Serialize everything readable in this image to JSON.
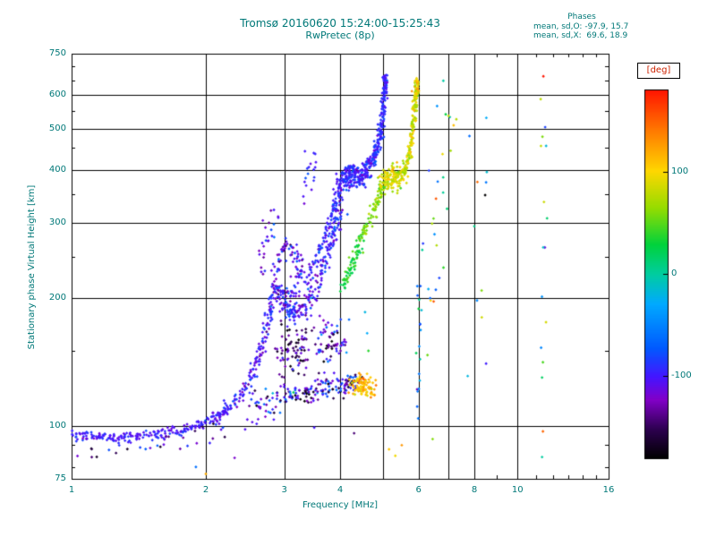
{
  "colors": {
    "text": "#007878",
    "axis": "#000000",
    "deg_label": "#cc2200",
    "background": "#ffffff"
  },
  "chart_data": {
    "type": "scatter",
    "title": "Tromsø 20160620 15:24:00-15:25:43",
    "subtitle": "RwPretec (8p)",
    "xlabel": "Frequency [MHz]",
    "ylabel": "Stationary phase Virtual Height [km]",
    "annotations": [
      "Phases",
      "mean, sd,O: -97.9, 15.7",
      "mean, sd,X:  69.6, 18.9"
    ],
    "x_scale": "log",
    "x_range": [
      1,
      16
    ],
    "x_ticks": [
      1,
      2,
      3,
      4,
      6,
      8,
      10,
      16
    ],
    "x_minor_ticks": [
      5,
      7,
      9,
      11,
      12,
      13,
      14,
      15
    ],
    "y_scale": "log",
    "y_range": [
      75,
      750
    ],
    "y_ticks": [
      750,
      600,
      500,
      400,
      300,
      200,
      100,
      75
    ],
    "y_minor_ticks": [
      80,
      90,
      150,
      250,
      350,
      450,
      550,
      650,
      700
    ],
    "grid_x": [
      2,
      3,
      4,
      5,
      6,
      7,
      8,
      10
    ],
    "grid_y": [
      100,
      200,
      300,
      400,
      500,
      600
    ],
    "colorbar": {
      "label": "[deg]",
      "ticks": [
        100,
        0,
        -100
      ],
      "vmin": -180,
      "vmax": 180
    },
    "colormap_stops": [
      [
        0.0,
        0,
        0,
        0
      ],
      [
        0.08,
        45,
        0,
        80
      ],
      [
        0.16,
        130,
        0,
        200
      ],
      [
        0.22,
        70,
        20,
        255
      ],
      [
        0.3,
        0,
        90,
        255
      ],
      [
        0.42,
        0,
        170,
        255
      ],
      [
        0.5,
        0,
        205,
        160
      ],
      [
        0.58,
        0,
        210,
        60
      ],
      [
        0.68,
        150,
        220,
        0
      ],
      [
        0.78,
        255,
        215,
        0
      ],
      [
        0.88,
        255,
        130,
        0
      ],
      [
        1.0,
        255,
        20,
        0
      ]
    ],
    "traces": [
      {
        "name": "o-trace-base",
        "phase": -100,
        "phase_sd": 10,
        "n": 240,
        "jf": 0.012,
        "jh": 0.015,
        "path": [
          [
            1.0,
            96
          ],
          [
            1.12,
            94
          ],
          [
            1.25,
            93
          ],
          [
            1.4,
            94
          ],
          [
            1.6,
            96
          ],
          [
            1.8,
            98
          ],
          [
            2.0,
            102
          ],
          [
            2.15,
            106
          ],
          [
            2.3,
            112
          ]
        ]
      },
      {
        "name": "base-under-scatter",
        "phase": -125,
        "phase_sd": 30,
        "n": 28,
        "jf": 0.05,
        "jh": 0.03,
        "path": [
          [
            1.03,
            88
          ],
          [
            1.3,
            87
          ],
          [
            1.6,
            90
          ],
          [
            1.95,
            94
          ],
          [
            2.2,
            100
          ]
        ]
      },
      {
        "name": "o-trace-knee",
        "phase": -100,
        "phase_sd": 14,
        "n": 130,
        "jf": 0.01,
        "jh": 0.02,
        "path": [
          [
            2.3,
            112
          ],
          [
            2.45,
            122
          ],
          [
            2.55,
            132
          ],
          [
            2.62,
            145
          ],
          [
            2.7,
            160
          ],
          [
            2.76,
            178
          ],
          [
            2.81,
            196
          ],
          [
            2.86,
            212
          ]
        ]
      },
      {
        "name": "knee-top-scatter",
        "phase": -100,
        "phase_sd": 20,
        "n": 26,
        "jf": 0.02,
        "jh": 0.05,
        "path": [
          [
            2.66,
            235
          ],
          [
            2.72,
            260
          ],
          [
            2.78,
            285
          ],
          [
            2.84,
            305
          ]
        ]
      },
      {
        "name": "loop-upper",
        "phase": -102,
        "phase_sd": 20,
        "n": 95,
        "jf": 0.012,
        "jh": 0.025,
        "path": [
          [
            2.82,
            218
          ],
          [
            2.9,
            242
          ],
          [
            3.0,
            260
          ],
          [
            3.1,
            263
          ],
          [
            3.2,
            252
          ],
          [
            3.26,
            234
          ],
          [
            3.2,
            216
          ],
          [
            3.1,
            204
          ],
          [
            3.02,
            196
          ]
        ]
      },
      {
        "name": "mid-rise",
        "phase": -96,
        "phase_sd": 16,
        "n": 210,
        "jf": 0.012,
        "jh": 0.03,
        "path": [
          [
            2.88,
            210
          ],
          [
            2.98,
            198
          ],
          [
            3.08,
            188
          ],
          [
            3.18,
            183
          ],
          [
            3.32,
            190
          ],
          [
            3.46,
            206
          ],
          [
            3.6,
            226
          ],
          [
            3.74,
            250
          ],
          [
            3.86,
            276
          ],
          [
            3.96,
            302
          ],
          [
            4.02,
            322
          ]
        ]
      },
      {
        "name": "second-branch",
        "phase": -94,
        "phase_sd": 12,
        "n": 115,
        "jf": 0.01,
        "jh": 0.025,
        "path": [
          [
            3.32,
            214
          ],
          [
            3.5,
            244
          ],
          [
            3.66,
            270
          ],
          [
            3.8,
            300
          ],
          [
            3.9,
            330
          ],
          [
            3.96,
            356
          ],
          [
            4.02,
            378
          ]
        ]
      },
      {
        "name": "purple-cluster",
        "phase": -138,
        "phase_sd": 25,
        "n": 85,
        "jf": 0.035,
        "jh": 0.08,
        "path": [
          [
            2.95,
            150
          ],
          [
            3.1,
            152
          ],
          [
            3.25,
            150
          ],
          [
            3.35,
            148
          ]
        ]
      },
      {
        "name": "tangle-mid",
        "phase": -112,
        "phase_sd": 35,
        "n": 65,
        "jf": 0.025,
        "jh": 0.06,
        "path": [
          [
            3.6,
            150
          ],
          [
            3.75,
            158
          ],
          [
            3.9,
            162
          ],
          [
            4.0,
            156
          ]
        ]
      },
      {
        "name": "upper-scatter",
        "phase": -95,
        "phase_sd": 12,
        "n": 18,
        "jf": 0.02,
        "jh": 0.06,
        "path": [
          [
            3.35,
            360
          ],
          [
            3.45,
            392
          ],
          [
            3.55,
            415
          ]
        ]
      },
      {
        "name": "o-cusp-blob",
        "phase": -96,
        "phase_sd": 12,
        "n": 170,
        "jf": 0.022,
        "jh": 0.03,
        "path": [
          [
            4.05,
            368
          ],
          [
            4.15,
            386
          ],
          [
            4.25,
            396
          ],
          [
            4.35,
            390
          ],
          [
            4.45,
            380
          ],
          [
            4.55,
            394
          ]
        ]
      },
      {
        "name": "o-steep",
        "phase": -95,
        "phase_sd": 11,
        "n": 210,
        "jf": 0.007,
        "jh": 0.02,
        "path": [
          [
            4.55,
            398
          ],
          [
            4.66,
            414
          ],
          [
            4.76,
            426
          ],
          [
            4.83,
            442
          ],
          [
            4.89,
            464
          ],
          [
            4.93,
            492
          ],
          [
            4.97,
            528
          ],
          [
            5.0,
            566
          ],
          [
            5.03,
            606
          ],
          [
            5.05,
            642
          ],
          [
            5.02,
            658
          ]
        ]
      },
      {
        "name": "x-lower-a",
        "phase": 32,
        "phase_sd": 12,
        "n": 70,
        "jf": 0.01,
        "jh": 0.02,
        "path": [
          [
            4.04,
            210
          ],
          [
            4.2,
            232
          ],
          [
            4.36,
            256
          ],
          [
            4.5,
            280
          ]
        ]
      },
      {
        "name": "x-lower-b",
        "phase": 62,
        "phase_sd": 12,
        "n": 70,
        "jf": 0.01,
        "jh": 0.02,
        "path": [
          [
            4.5,
            280
          ],
          [
            4.66,
            306
          ],
          [
            4.8,
            330
          ],
          [
            4.92,
            352
          ],
          [
            5.0,
            368
          ]
        ]
      },
      {
        "name": "x-cusp",
        "phase": 86,
        "phase_sd": 14,
        "n": 130,
        "jf": 0.02,
        "jh": 0.03,
        "path": [
          [
            5.0,
            366
          ],
          [
            5.12,
            382
          ],
          [
            5.25,
            392
          ],
          [
            5.38,
            386
          ],
          [
            5.45,
            378
          ]
        ]
      },
      {
        "name": "x-steep",
        "phase": 84,
        "phase_sd": 14,
        "n": 160,
        "jf": 0.006,
        "jh": 0.02,
        "path": [
          [
            5.52,
            388
          ],
          [
            5.63,
            408
          ],
          [
            5.71,
            432
          ],
          [
            5.77,
            462
          ],
          [
            5.82,
            500
          ],
          [
            5.86,
            540
          ],
          [
            5.9,
            580
          ],
          [
            5.93,
            616
          ],
          [
            5.95,
            640
          ]
        ]
      },
      {
        "name": "x-steep-top",
        "phase": 102,
        "phase_sd": 18,
        "n": 22,
        "jf": 0.006,
        "jh": 0.02,
        "path": [
          [
            5.9,
            600
          ],
          [
            5.95,
            630
          ],
          [
            5.97,
            648
          ]
        ]
      },
      {
        "name": "multiples-band",
        "phase": -112,
        "phase_sd": 42,
        "n": 150,
        "jf": 0.02,
        "jh": 0.03,
        "path": [
          [
            3.0,
            120
          ],
          [
            3.2,
            116
          ],
          [
            3.4,
            119
          ],
          [
            3.6,
            124
          ],
          [
            3.8,
            121
          ],
          [
            4.0,
            124
          ],
          [
            4.2,
            128
          ],
          [
            4.32,
            126
          ]
        ]
      },
      {
        "name": "low-left-multiple",
        "phase": -112,
        "phase_sd": 30,
        "n": 40,
        "jf": 0.03,
        "jh": 0.04,
        "path": [
          [
            2.55,
            108
          ],
          [
            2.75,
            112
          ],
          [
            2.95,
            114
          ]
        ]
      },
      {
        "name": "orange-blob",
        "phase": 114,
        "phase_sd": 18,
        "n": 95,
        "jf": 0.018,
        "jh": 0.03,
        "path": [
          [
            4.32,
            122
          ],
          [
            4.45,
            126
          ],
          [
            4.58,
            124
          ],
          [
            4.72,
            121
          ]
        ]
      },
      {
        "name": "column-6mhz",
        "phase": -30,
        "phase_sd": 40,
        "n": 20,
        "jf": 0.008,
        "jh": 0.12,
        "path": [
          [
            6.0,
            110
          ],
          [
            6.05,
            260
          ]
        ]
      },
      {
        "name": "column-6p5-7mhz",
        "phase": 10,
        "phase_sd": 85,
        "n": 26,
        "jf": 0.03,
        "jh": 0.1,
        "path": [
          [
            6.35,
            160
          ],
          [
            6.55,
            260
          ],
          [
            6.75,
            380
          ],
          [
            6.95,
            520
          ]
        ]
      },
      {
        "name": "column-8mhz",
        "phase": -15,
        "phase_sd": 90,
        "n": 10,
        "jf": 0.02,
        "jh": 0.12,
        "path": [
          [
            7.9,
            150
          ],
          [
            8.2,
            300
          ],
          [
            8.5,
            440
          ]
        ]
      },
      {
        "name": "column-11mhz",
        "phase": 5,
        "phase_sd": 100,
        "n": 16,
        "jf": 0.015,
        "jh": 0.1,
        "path": [
          [
            11.1,
            95
          ],
          [
            11.3,
            170
          ],
          [
            11.4,
            300
          ],
          [
            11.5,
            470
          ],
          [
            11.45,
            620
          ]
        ]
      }
    ],
    "single_points": [
      [
        1.9,
        80,
        -60
      ],
      [
        2.0,
        77,
        118
      ],
      [
        2.32,
        84,
        -120
      ],
      [
        2.45,
        98,
        -105
      ],
      [
        2.6,
        101,
        -100
      ],
      [
        3.5,
        99,
        -100
      ],
      [
        4.3,
        96,
        -142
      ],
      [
        4.55,
        185,
        -20
      ],
      [
        4.6,
        165,
        -28
      ],
      [
        4.63,
        150,
        38
      ],
      [
        5.15,
        88,
        108
      ],
      [
        5.32,
        85,
        96
      ],
      [
        5.5,
        90,
        128
      ],
      [
        6.45,
        93,
        60
      ],
      [
        6.6,
        565,
        -40
      ],
      [
        6.9,
        540,
        28
      ],
      [
        7.8,
        480,
        -62
      ],
      [
        8.5,
        140,
        -98
      ],
      [
        11.4,
        97,
        148
      ]
    ]
  }
}
